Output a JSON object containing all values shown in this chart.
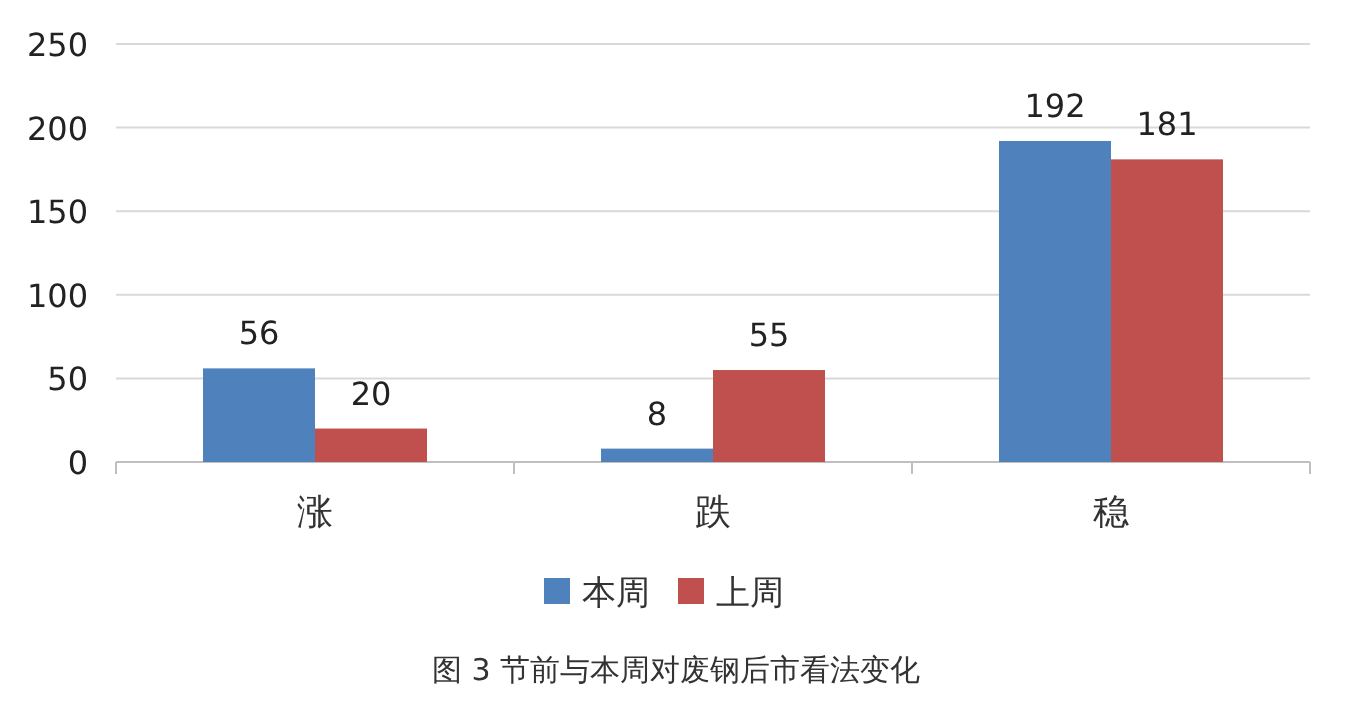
{
  "chart_data": {
    "type": "bar",
    "annotations": [
      "图 3  节前与本周对废钢后市看法变化"
    ],
    "categories": [
      "涨",
      "跌",
      "稳"
    ],
    "series": [
      {
        "name": "本周",
        "color": "#4f81bd",
        "values": [
          56,
          8,
          192
        ]
      },
      {
        "name": "上周",
        "color": "#c0504d",
        "values": [
          20,
          55,
          181
        ]
      }
    ],
    "ylim": [
      0,
      250
    ],
    "yticks": [
      0,
      50,
      100,
      150,
      200,
      250
    ],
    "grid": "y",
    "legend": "bottom",
    "data_labels": true
  }
}
